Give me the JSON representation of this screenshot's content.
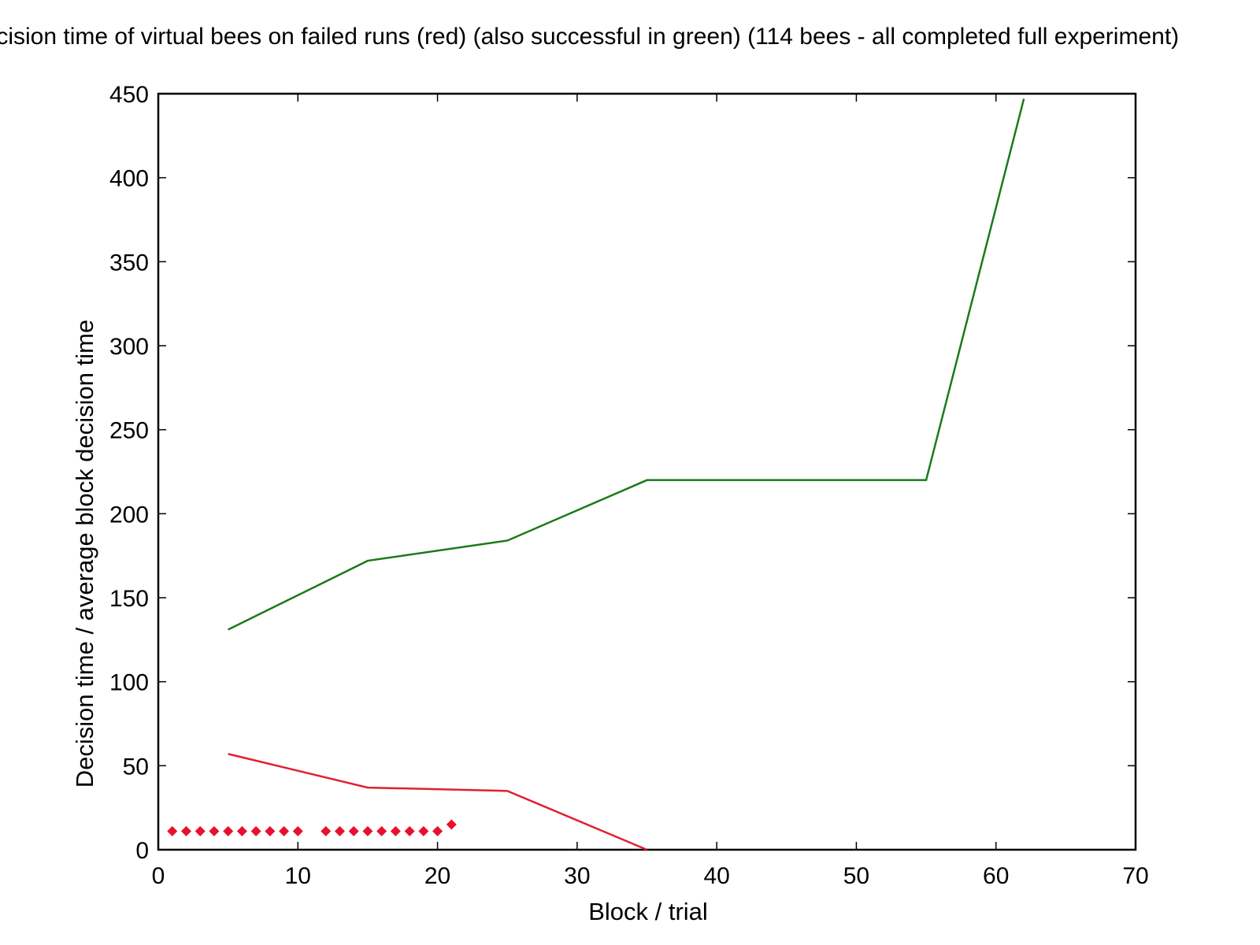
{
  "chart_data": {
    "type": "line",
    "title": "Decision time of virtual bees on failed runs (red) (also successful in green) (114 bees - all completed full experiment)",
    "xlabel": "Block / trial",
    "ylabel": "Decision time / average block decision time",
    "xlim": [
      0,
      70
    ],
    "ylim": [
      0,
      450
    ],
    "x_ticks": [
      0,
      10,
      20,
      30,
      40,
      50,
      60,
      70
    ],
    "y_ticks": [
      0,
      50,
      100,
      150,
      200,
      250,
      300,
      350,
      400,
      450
    ],
    "grid": false,
    "series": [
      {
        "style": "line",
        "color": "#1a7a1a",
        "x": [
          5,
          15,
          25,
          35,
          55,
          62
        ],
        "y": [
          131,
          172,
          184,
          220,
          220,
          447
        ]
      },
      {
        "style": "line",
        "color": "#e02030",
        "x": [
          5,
          15,
          25,
          35
        ],
        "y": [
          57,
          37,
          35,
          0
        ]
      },
      {
        "style": "points",
        "marker": "diamond",
        "color": "#e8102a",
        "x": [
          1,
          2,
          3,
          4,
          5,
          6,
          7,
          8,
          9,
          10,
          12,
          13,
          14,
          15,
          16,
          17,
          18,
          19,
          20,
          21
        ],
        "y": [
          11,
          11,
          11,
          11,
          11,
          11,
          11,
          11,
          11,
          11,
          11,
          11,
          11,
          11,
          11,
          11,
          11,
          11,
          11,
          15
        ]
      }
    ]
  }
}
